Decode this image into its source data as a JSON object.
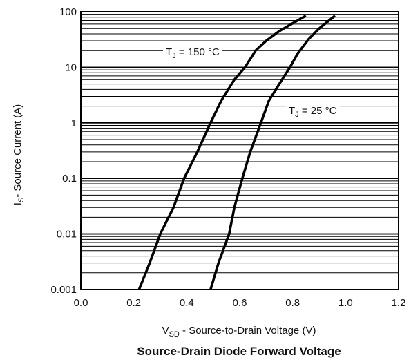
{
  "chart_data": {
    "type": "line",
    "title": "Source-Drain Diode Forward Voltage",
    "xlabel": {
      "main": "V",
      "sub": "SD",
      "rest": " - Source-to-Drain Voltage (V)"
    },
    "ylabel": {
      "main": "I",
      "sub": "S",
      "rest": "- Source Current (A)"
    },
    "x_scale": "linear",
    "y_scale": "log",
    "xlim": [
      0.0,
      1.2
    ],
    "ylim": [
      0.001,
      100
    ],
    "x_ticks": [
      "0.0",
      "0.2",
      "0.4",
      "0.6",
      "0.8",
      "1.0",
      "1.2"
    ],
    "y_ticks": [
      "0.001",
      "0.01",
      "0.1",
      "1",
      "10",
      "100"
    ],
    "grid": {
      "x": false,
      "y_major": true,
      "y_minor": true
    },
    "series": [
      {
        "name": {
          "main": "T",
          "sub": "J",
          "rest": " = 150 °C"
        },
        "color": "#000000",
        "points": [
          [
            0.22,
            0.001
          ],
          [
            0.26,
            0.003
          ],
          [
            0.3,
            0.01
          ],
          [
            0.35,
            0.03
          ],
          [
            0.39,
            0.1
          ],
          [
            0.44,
            0.3
          ],
          [
            0.49,
            1
          ],
          [
            0.53,
            2.5
          ],
          [
            0.58,
            6
          ],
          [
            0.62,
            10
          ],
          [
            0.66,
            20
          ],
          [
            0.7,
            30
          ],
          [
            0.75,
            45
          ],
          [
            0.8,
            62
          ],
          [
            0.85,
            85
          ]
        ]
      },
      {
        "name": {
          "main": "T",
          "sub": "J",
          "rest": " = 25 °C"
        },
        "color": "#000000",
        "points": [
          [
            0.49,
            0.001
          ],
          [
            0.52,
            0.003
          ],
          [
            0.56,
            0.01
          ],
          [
            0.58,
            0.03
          ],
          [
            0.61,
            0.1
          ],
          [
            0.64,
            0.3
          ],
          [
            0.68,
            1
          ],
          [
            0.71,
            2.5
          ],
          [
            0.76,
            6
          ],
          [
            0.79,
            10
          ],
          [
            0.82,
            18
          ],
          [
            0.86,
            32
          ],
          [
            0.9,
            50
          ],
          [
            0.96,
            85
          ]
        ]
      }
    ]
  }
}
